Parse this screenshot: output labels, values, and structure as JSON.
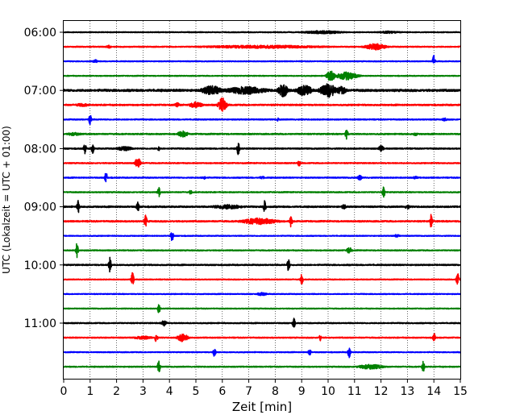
{
  "chart_data": {
    "type": "line",
    "title": "",
    "xlabel": "Zeit  [min]",
    "ylabel": "UTC (Lokalzeit = UTC + 01:00)",
    "xlim": [
      0,
      15
    ],
    "xticks": [
      0,
      1,
      2,
      3,
      4,
      5,
      6,
      7,
      8,
      9,
      10,
      11,
      12,
      13,
      14,
      15
    ],
    "grid": "vertical dotted",
    "line_interval_minutes": 15,
    "rows_start": "06:00",
    "ytick_labels": [
      "06:00",
      "07:00",
      "08:00",
      "09:00",
      "10:00",
      "11:00"
    ],
    "color_cycle": [
      "#000000",
      "#ff0000",
      "#0000ff",
      "#008000"
    ],
    "traces": [
      {
        "start": "06:00",
        "color": "#000000",
        "noise": 0.5,
        "events": [
          {
            "t": 9.8,
            "amp": 2,
            "w": 0.8
          },
          {
            "t": 12.3,
            "amp": 1.5,
            "w": 0.5
          }
        ]
      },
      {
        "start": "06:15",
        "color": "#ff0000",
        "noise": 0.6,
        "events": [
          {
            "t": 1.7,
            "amp": 2,
            "w": 0.1
          },
          {
            "t": 7.5,
            "amp": 2,
            "w": 2.5
          },
          {
            "t": 11.8,
            "amp": 4,
            "w": 0.4
          }
        ]
      },
      {
        "start": "06:30",
        "color": "#0000ff",
        "noise": 0.5,
        "events": [
          {
            "t": 1.2,
            "amp": 2,
            "w": 0.1
          },
          {
            "t": 14.0,
            "amp": 8,
            "w": 0.05
          }
        ]
      },
      {
        "start": "06:45",
        "color": "#008000",
        "noise": 0.5,
        "events": [
          {
            "t": 10.1,
            "amp": 7,
            "w": 0.15
          },
          {
            "t": 10.7,
            "amp": 5,
            "w": 0.4
          }
        ]
      },
      {
        "start": "07:00",
        "color": "#000000",
        "noise": 1.2,
        "events": [
          {
            "t": 5.6,
            "amp": 6,
            "w": 0.4
          },
          {
            "t": 6.9,
            "amp": 5,
            "w": 0.8
          },
          {
            "t": 8.3,
            "amp": 8,
            "w": 0.2
          },
          {
            "t": 9.1,
            "amp": 7,
            "w": 0.3
          },
          {
            "t": 10.0,
            "amp": 9,
            "w": 0.3
          },
          {
            "t": 10.5,
            "amp": 5,
            "w": 0.2
          }
        ]
      },
      {
        "start": "07:15",
        "color": "#ff0000",
        "noise": 0.8,
        "events": [
          {
            "t": 0.7,
            "amp": 2,
            "w": 0.3
          },
          {
            "t": 4.3,
            "amp": 3,
            "w": 0.1
          },
          {
            "t": 5.0,
            "amp": 4,
            "w": 0.25
          },
          {
            "t": 6.0,
            "amp": 9,
            "w": 0.15
          }
        ]
      },
      {
        "start": "07:30",
        "color": "#0000ff",
        "noise": 0.6,
        "events": [
          {
            "t": 1.0,
            "amp": 7,
            "w": 0.05
          },
          {
            "t": 8.1,
            "amp": 2,
            "w": 0.05
          },
          {
            "t": 14.4,
            "amp": 2,
            "w": 0.1
          }
        ]
      },
      {
        "start": "07:45",
        "color": "#008000",
        "noise": 0.7,
        "events": [
          {
            "t": 0.4,
            "amp": 2,
            "w": 0.3
          },
          {
            "t": 4.5,
            "amp": 4,
            "w": 0.2
          },
          {
            "t": 10.7,
            "amp": 7,
            "w": 0.05
          },
          {
            "t": 13.3,
            "amp": 2,
            "w": 0.1
          }
        ]
      },
      {
        "start": "08:00",
        "color": "#000000",
        "noise": 0.7,
        "events": [
          {
            "t": 0.8,
            "amp": 7,
            "w": 0.05
          },
          {
            "t": 1.1,
            "amp": 7,
            "w": 0.05
          },
          {
            "t": 2.3,
            "amp": 3,
            "w": 0.3
          },
          {
            "t": 3.6,
            "amp": 3,
            "w": 0.05
          },
          {
            "t": 6.6,
            "amp": 8,
            "w": 0.05
          },
          {
            "t": 12.0,
            "amp": 4,
            "w": 0.1
          }
        ]
      },
      {
        "start": "08:15",
        "color": "#ff0000",
        "noise": 0.6,
        "events": [
          {
            "t": 2.8,
            "amp": 8,
            "w": 0.1
          },
          {
            "t": 8.9,
            "amp": 4,
            "w": 0.05
          }
        ]
      },
      {
        "start": "08:30",
        "color": "#0000ff",
        "noise": 0.6,
        "events": [
          {
            "t": 1.6,
            "amp": 7,
            "w": 0.05
          },
          {
            "t": 5.3,
            "amp": 2,
            "w": 0.1
          },
          {
            "t": 7.5,
            "amp": 2,
            "w": 0.1
          },
          {
            "t": 11.2,
            "amp": 3,
            "w": 0.1
          },
          {
            "t": 13.3,
            "amp": 2,
            "w": 0.1
          }
        ]
      },
      {
        "start": "08:45",
        "color": "#008000",
        "noise": 0.6,
        "events": [
          {
            "t": 3.6,
            "amp": 6,
            "w": 0.05
          },
          {
            "t": 4.8,
            "amp": 3,
            "w": 0.05
          },
          {
            "t": 12.1,
            "amp": 7,
            "w": 0.05
          }
        ]
      },
      {
        "start": "09:00",
        "color": "#000000",
        "noise": 0.8,
        "events": [
          {
            "t": 0.55,
            "amp": 8,
            "w": 0.05
          },
          {
            "t": 2.8,
            "amp": 7,
            "w": 0.05
          },
          {
            "t": 6.2,
            "amp": 3,
            "w": 0.6
          },
          {
            "t": 7.6,
            "amp": 8,
            "w": 0.05
          },
          {
            "t": 10.6,
            "amp": 3,
            "w": 0.1
          },
          {
            "t": 13.0,
            "amp": 3,
            "w": 0.1
          }
        ]
      },
      {
        "start": "09:15",
        "color": "#ff0000",
        "noise": 0.8,
        "events": [
          {
            "t": 3.1,
            "amp": 8,
            "w": 0.05
          },
          {
            "t": 7.4,
            "amp": 4,
            "w": 0.7
          },
          {
            "t": 8.6,
            "amp": 8,
            "w": 0.05
          },
          {
            "t": 13.9,
            "amp": 9,
            "w": 0.05
          }
        ]
      },
      {
        "start": "09:30",
        "color": "#0000ff",
        "noise": 0.5,
        "events": [
          {
            "t": 4.1,
            "amp": 7,
            "w": 0.05
          },
          {
            "t": 12.6,
            "amp": 2,
            "w": 0.1
          }
        ]
      },
      {
        "start": "09:45",
        "color": "#008000",
        "noise": 0.6,
        "events": [
          {
            "t": 0.5,
            "amp": 9,
            "w": 0.05
          },
          {
            "t": 10.8,
            "amp": 4,
            "w": 0.1
          }
        ]
      },
      {
        "start": "10:00",
        "color": "#000000",
        "noise": 0.7,
        "events": [
          {
            "t": 1.75,
            "amp": 10,
            "w": 0.05
          },
          {
            "t": 8.5,
            "amp": 8,
            "w": 0.05
          }
        ]
      },
      {
        "start": "10:15",
        "color": "#ff0000",
        "noise": 0.5,
        "events": [
          {
            "t": 2.6,
            "amp": 9,
            "w": 0.05
          },
          {
            "t": 9.0,
            "amp": 7,
            "w": 0.05
          },
          {
            "t": 14.9,
            "amp": 9,
            "w": 0.05
          }
        ]
      },
      {
        "start": "10:30",
        "color": "#0000ff",
        "noise": 0.5,
        "events": [
          {
            "t": 7.5,
            "amp": 2,
            "w": 0.2
          }
        ]
      },
      {
        "start": "10:45",
        "color": "#008000",
        "noise": 0.5,
        "events": [
          {
            "t": 3.6,
            "amp": 6,
            "w": 0.05
          }
        ]
      },
      {
        "start": "11:00",
        "color": "#000000",
        "noise": 0.6,
        "events": [
          {
            "t": 3.8,
            "amp": 4,
            "w": 0.1
          },
          {
            "t": 8.7,
            "amp": 7,
            "w": 0.05
          }
        ]
      },
      {
        "start": "11:15",
        "color": "#ff0000",
        "noise": 0.6,
        "events": [
          {
            "t": 3.0,
            "amp": 2,
            "w": 0.4
          },
          {
            "t": 3.5,
            "amp": 7,
            "w": 0.05
          },
          {
            "t": 4.5,
            "amp": 5,
            "w": 0.2
          },
          {
            "t": 9.7,
            "amp": 4,
            "w": 0.05
          },
          {
            "t": 14.0,
            "amp": 7,
            "w": 0.05
          }
        ]
      },
      {
        "start": "11:30",
        "color": "#0000ff",
        "noise": 0.5,
        "events": [
          {
            "t": 5.7,
            "amp": 7,
            "w": 0.05
          },
          {
            "t": 9.3,
            "amp": 5,
            "w": 0.05
          },
          {
            "t": 10.8,
            "amp": 8,
            "w": 0.05
          }
        ]
      },
      {
        "start": "11:45",
        "color": "#008000",
        "noise": 0.6,
        "events": [
          {
            "t": 3.6,
            "amp": 8,
            "w": 0.05
          },
          {
            "t": 11.6,
            "amp": 3,
            "w": 0.5
          },
          {
            "t": 13.6,
            "amp": 8,
            "w": 0.05
          }
        ]
      }
    ]
  }
}
